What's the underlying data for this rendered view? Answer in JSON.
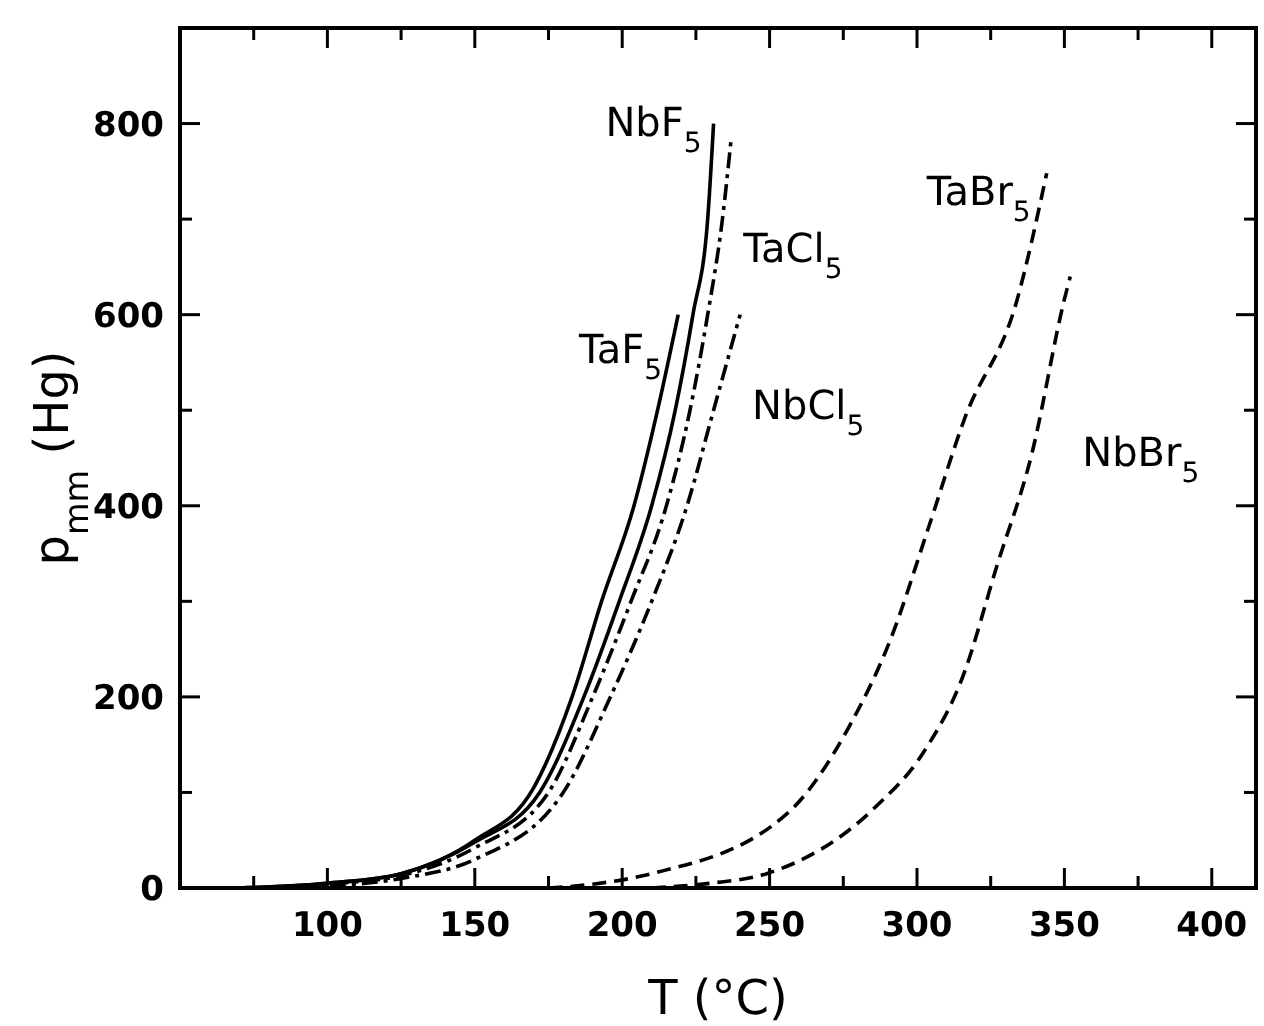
{
  "chart_data": {
    "type": "line",
    "xlabel": "T  (°C)",
    "ylabel": "p$_{mm}$ (Hg)",
    "xlim": [
      50,
      415
    ],
    "ylim": [
      0,
      900
    ],
    "xticks": [
      {
        "value": 75,
        "label": null
      },
      100,
      {
        "value": 125,
        "label": null
      },
      150,
      {
        "value": 175,
        "label": null
      },
      200,
      {
        "value": 225,
        "label": null
      },
      250,
      {
        "value": 275,
        "label": null
      },
      300,
      {
        "value": 325,
        "label": null
      },
      350,
      {
        "value": 375,
        "label": null
      },
      400
    ],
    "yticks": [
      0,
      {
        "value": 100,
        "label": null
      },
      200,
      {
        "value": 300,
        "label": null
      },
      400,
      {
        "value": 500,
        "label": null
      },
      600,
      {
        "value": 700,
        "label": null
      },
      800
    ],
    "grid": false,
    "marker": "none",
    "series": [
      {
        "name": "NbF$_{5}$",
        "color": "#000000",
        "line_style": "solid",
        "x": [
          70,
          100,
          125,
          150,
          172,
          187,
          199,
          210,
          218,
          224,
          229,
          231
        ],
        "values": [
          0,
          5,
          15,
          48,
          100,
          200,
          300,
          400,
          500,
          600,
          700,
          800
        ]
      },
      {
        "name": "TaF$_{5}$",
        "color": "#000000",
        "line_style": "solid",
        "x": [
          70,
          100,
          125,
          150,
          170,
          183,
          193,
          204,
          212,
          219
        ],
        "values": [
          0,
          5,
          15,
          50,
          105,
          200,
          300,
          400,
          500,
          600
        ]
      },
      {
        "name": "TaCl$_{5}$",
        "color": "#000000",
        "line_style": "dashdot",
        "x": [
          80,
          100,
          125,
          150,
          175,
          190,
          203,
          215,
          223,
          229,
          234,
          237
        ],
        "values": [
          0,
          4,
          13,
          42,
          100,
          200,
          300,
          400,
          500,
          600,
          700,
          785
        ]
      },
      {
        "name": "NbCl$_{5}$",
        "color": "#000000",
        "line_style": "dashdot",
        "x": [
          90,
          110,
          125,
          150,
          180,
          196,
          210,
          222,
          231,
          240
        ],
        "values": [
          0,
          4,
          10,
          30,
          100,
          200,
          300,
          400,
          500,
          600
        ]
      },
      {
        "name": "TaBr$_{5}$",
        "color": "#000000",
        "line_style": "dashed",
        "x": [
          175,
          190,
          210,
          256,
          277,
          291,
          304,
          316,
          334,
          344
        ],
        "values": [
          0,
          4,
          15,
          78,
          169,
          260,
          378,
          490,
          616,
          748
        ]
      },
      {
        "name": "NbBr$_{5}$",
        "color": "#000000",
        "line_style": "dashed",
        "x": [
          210,
          230,
          249,
          286,
          302,
          316,
          327,
          339,
          350,
          352
        ],
        "values": [
          0,
          5,
          15,
          85,
          141,
          225,
          336,
          455,
          616,
          640
        ]
      }
    ]
  }
}
